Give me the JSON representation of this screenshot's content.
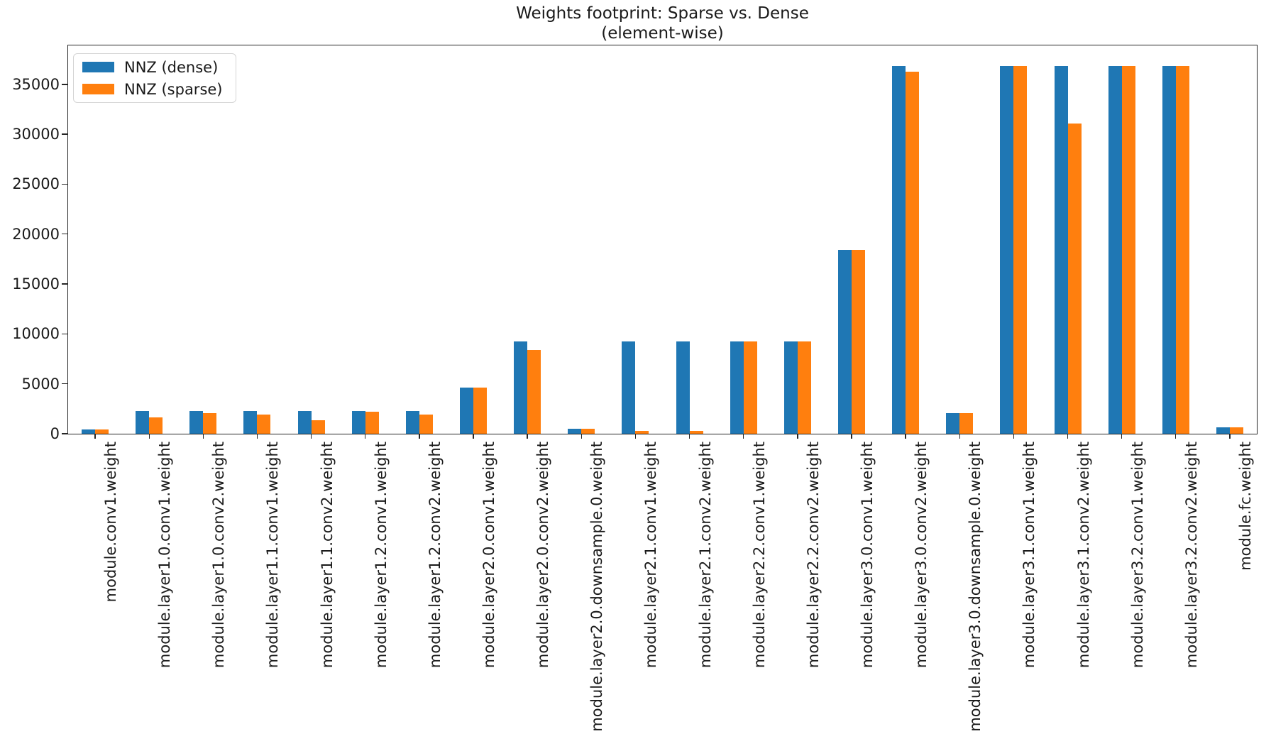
{
  "chart_data": {
    "type": "bar",
    "title": "Weights footprint: Sparse vs. Dense",
    "subtitle": "(element-wise)",
    "categories": [
      "module.conv1.weight",
      "module.layer1.0.conv1.weight",
      "module.layer1.0.conv2.weight",
      "module.layer1.1.conv1.weight",
      "module.layer1.1.conv2.weight",
      "module.layer1.2.conv1.weight",
      "module.layer1.2.conv2.weight",
      "module.layer2.0.conv1.weight",
      "module.layer2.0.conv2.weight",
      "module.layer2.0.downsample.0.weight",
      "module.layer2.1.conv1.weight",
      "module.layer2.1.conv2.weight",
      "module.layer2.2.conv1.weight",
      "module.layer2.2.conv2.weight",
      "module.layer3.0.conv1.weight",
      "module.layer3.0.conv2.weight",
      "module.layer3.0.downsample.0.weight",
      "module.layer3.1.conv1.weight",
      "module.layer3.1.conv2.weight",
      "module.layer3.2.conv1.weight",
      "module.layer3.2.conv2.weight",
      "module.fc.weight"
    ],
    "series": [
      {
        "name": "NNZ (dense)",
        "color": "#1f77b4",
        "values": [
          432,
          2304,
          2304,
          2304,
          2304,
          2304,
          2304,
          4608,
          9216,
          512,
          9216,
          9216,
          9216,
          9216,
          18432,
          36864,
          2048,
          36864,
          36864,
          36864,
          36864,
          640
        ]
      },
      {
        "name": "NNZ (sparse)",
        "color": "#ff7f0e",
        "values": [
          432,
          1650,
          2050,
          1900,
          1350,
          2200,
          1900,
          4608,
          8400,
          512,
          300,
          300,
          9216,
          9216,
          18432,
          36300,
          2048,
          36864,
          31100,
          36864,
          36864,
          640
        ]
      }
    ],
    "yticks": [
      0,
      5000,
      10000,
      15000,
      20000,
      25000,
      30000,
      35000
    ],
    "ylim": [
      0,
      38900
    ],
    "legend_position": "upper left",
    "grid": false
  }
}
